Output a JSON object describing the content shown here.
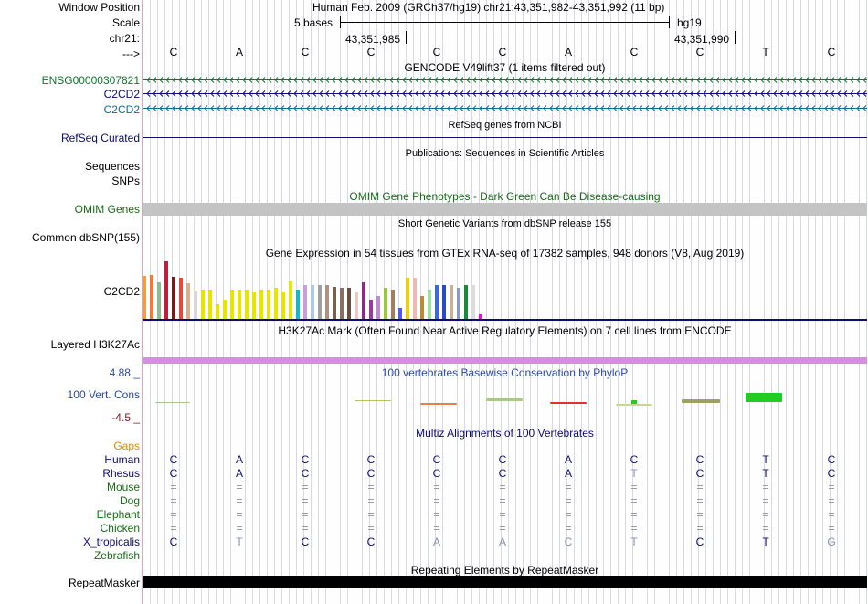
{
  "header": {
    "window_position_label": "Window Position",
    "scale_label": "Scale",
    "chrom_label": "chr21:",
    "strand_label": "--->",
    "window_position_text": "Human Feb. 2009 (GRCh37/hg19)   chr21:43,351,982-43,351,992 (11 bp)",
    "scale_text": "5 bases",
    "assembly": "hg19",
    "coord_left": "43,351,985",
    "coord_right": "43,351,990"
  },
  "reference_bases": [
    "C",
    "A",
    "C",
    "C",
    "C",
    "C",
    "A",
    "C",
    "C",
    "T",
    "C"
  ],
  "tracks": {
    "gencode": {
      "title": "GENCODE V49lift37 (1 items filtered out)",
      "rows": [
        {
          "label": "ENSG00000307821",
          "color": "#0a7a2a"
        },
        {
          "label": "C2CD2",
          "color": "#0c0c78"
        },
        {
          "label": "C2CD2",
          "color": "#0c6c9c"
        }
      ]
    },
    "refseq": {
      "title": "RefSeq genes from NCBI",
      "label": "RefSeq Curated"
    },
    "publications": {
      "title": "Publications: Sequences in Scientific Articles",
      "labels": [
        "Sequences",
        "SNPs"
      ]
    },
    "omim": {
      "title": "OMIM Gene Phenotypes - Dark Green Can Be Disease-causing",
      "label": "OMIM Genes"
    },
    "dbsnp": {
      "title": "Short Genetic Variants from dbSNP release 155",
      "label": "Common dbSNP(155)"
    },
    "gtex": {
      "title": "Gene Expression in 54 tissues from GTEx RNA-seq of 17382 samples, 948 donors (V8, Aug 2019)",
      "label": "C2CD2"
    },
    "h3k27ac": {
      "title": "H3K27Ac Mark (Often Found Near Active Regulatory Elements) on 7 cell lines from ENCODE",
      "label": "Layered H3K27Ac"
    },
    "phylop": {
      "title": "100 vertebrates Basewise Conservation by PhyloP",
      "label": "100 Vert. Cons",
      "max_label": "4.88 _",
      "min_label": "-4.5 _"
    },
    "multiz": {
      "title": "Multiz Alignments of 100 Vertebrates",
      "gaps_label": "Gaps",
      "species": [
        {
          "name": "Human",
          "bases": [
            "C",
            "A",
            "C",
            "C",
            "C",
            "C",
            "A",
            "C",
            "C",
            "T",
            "C"
          ],
          "dim": [],
          "color": "#0c0c78"
        },
        {
          "name": "Rhesus",
          "bases": [
            "C",
            "A",
            "C",
            "C",
            "C",
            "C",
            "A",
            "T",
            "C",
            "T",
            "C"
          ],
          "dim": [
            7
          ],
          "color": "#0c0c78"
        },
        {
          "name": "Mouse",
          "bases": [
            "=",
            "=",
            "=",
            "=",
            "=",
            "=",
            "=",
            "=",
            "=",
            "=",
            "="
          ],
          "dim": [],
          "color": "#166e16"
        },
        {
          "name": "Dog",
          "bases": [
            "=",
            "=",
            "=",
            "=",
            "=",
            "=",
            "=",
            "=",
            "=",
            "=",
            "="
          ],
          "dim": [],
          "color": "#166e16"
        },
        {
          "name": "Elephant",
          "bases": [
            "=",
            "=",
            "=",
            "=",
            "=",
            "=",
            "=",
            "=",
            "=",
            "=",
            "="
          ],
          "dim": [],
          "color": "#166e16"
        },
        {
          "name": "Chicken",
          "bases": [
            "=",
            "=",
            "=",
            "=",
            "=",
            "=",
            "=",
            "=",
            "=",
            "=",
            "="
          ],
          "dim": [],
          "color": "#166e16"
        },
        {
          "name": "X_tropicalis",
          "bases": [
            "C",
            "T",
            "C",
            "C",
            "A",
            "A",
            "C",
            "T",
            "C",
            "T",
            "G"
          ],
          "dim": [
            1,
            4,
            5,
            6,
            7,
            10
          ],
          "color": "#0c0c78"
        },
        {
          "name": "Zebrafish",
          "bases": [],
          "dim": [],
          "color": "#166e16"
        }
      ]
    },
    "repeatmasker": {
      "title": "Repeating Elements by RepeatMasker",
      "label": "RepeatMasker"
    }
  }
}
